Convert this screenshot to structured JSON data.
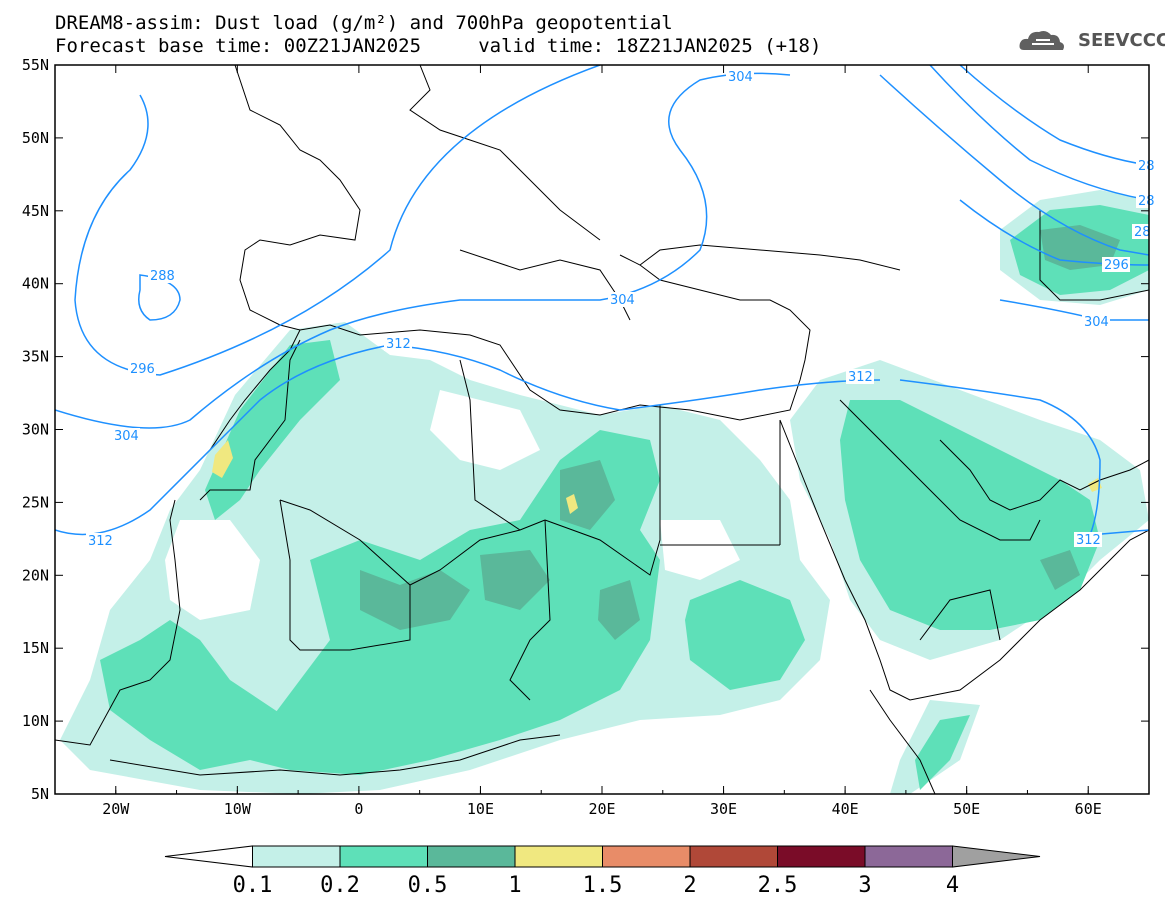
{
  "title_line1": "DREAM8-assim: Dust load (g/m²) and 700hPa geopotential",
  "title_line2": "Forecast base time: 00Z21JAN2025     valid time: 18Z21JAN2025 (+18)",
  "logo": {
    "text": "SEEVCCC",
    "icon": "cloud-icon"
  },
  "map": {
    "lon_range": [
      -25,
      65
    ],
    "lat_range": [
      5,
      55
    ],
    "lon_ticks": [
      "20W",
      "10W",
      "0",
      "10E",
      "20E",
      "30E",
      "40E",
      "50E",
      "60E"
    ],
    "lat_ticks": [
      "55N",
      "50N",
      "45N",
      "40N",
      "35N",
      "30N",
      "25N",
      "20N",
      "15N",
      "10N",
      "5N"
    ],
    "geopotential_labels": [
      "304",
      "288",
      "296",
      "304",
      "312",
      "304",
      "312",
      "312",
      "312",
      "304",
      "296",
      "28",
      "28",
      "28"
    ],
    "contour_color": "#1e90ff"
  },
  "colorbar": {
    "levels": [
      "0.1",
      "0.2",
      "0.5",
      "1",
      "1.5",
      "2",
      "2.5",
      "3",
      "4"
    ],
    "colors": [
      "#ffffff",
      "#c4f0e8",
      "#5ee0b8",
      "#5ab89a",
      "#f0e880",
      "#e88c68",
      "#b04838",
      "#7a0c28",
      "#8c6898",
      "#a0a0a0"
    ]
  }
}
